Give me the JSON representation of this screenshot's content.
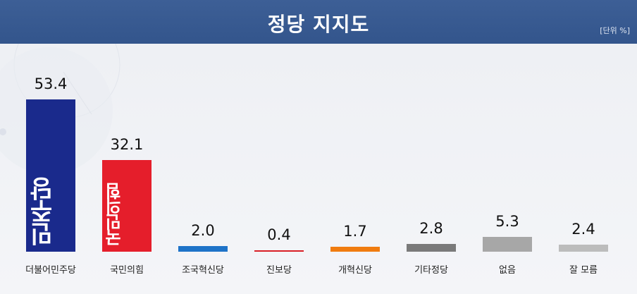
{
  "header": {
    "title": "정당 지지도",
    "unit": "[단위 %]"
  },
  "chart_data": {
    "type": "bar",
    "title": "정당 지지도",
    "unit": "[단위 %]",
    "categories": [
      "더불어민주당",
      "국민의힘",
      "조국혁신당",
      "진보당",
      "개혁신당",
      "기타정당",
      "없음",
      "잘 모름"
    ],
    "values": [
      53.4,
      32.1,
      2.0,
      0.4,
      1.7,
      2.8,
      5.3,
      2.4
    ],
    "value_labels": [
      "53.4",
      "32.1",
      "2.0",
      "0.4",
      "1.7",
      "2.8",
      "5.3",
      "2.4"
    ],
    "colors": [
      "#1a2a8c",
      "#e51e2b",
      "#1e73c8",
      "#d91f26",
      "#f07c10",
      "#7a7a7a",
      "#a7a7a7",
      "#bcbcbc"
    ],
    "bar_logos": [
      "민주당",
      "국민의힘",
      "",
      "",
      "",
      "",
      "",
      ""
    ],
    "ylim": [
      0,
      53.4
    ],
    "grid": false,
    "legend": "none"
  }
}
